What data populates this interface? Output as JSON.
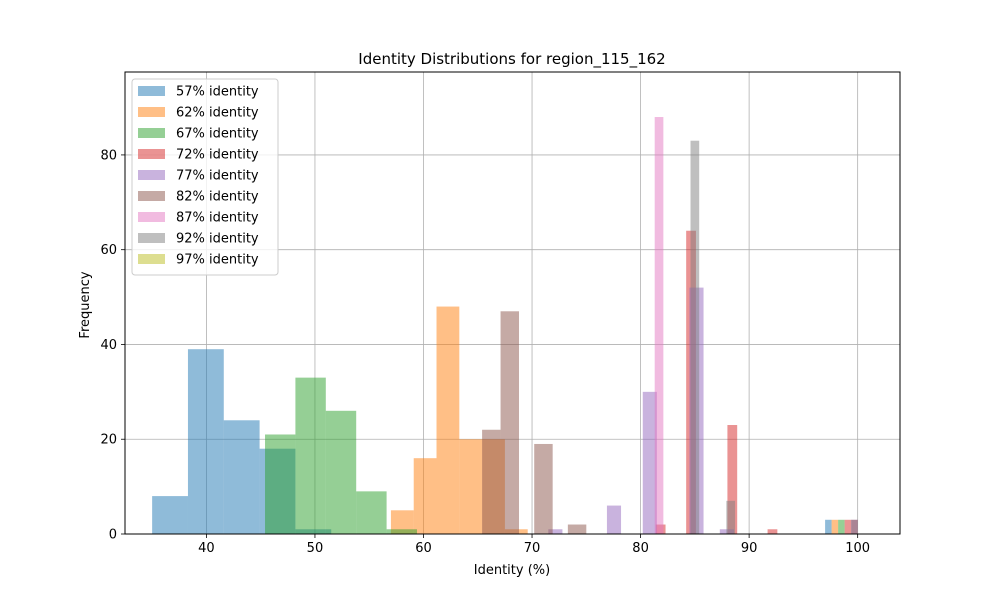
{
  "chart_data": {
    "type": "histogram",
    "title": "Identity Distributions for region_115_162",
    "xlabel": "Identity (%)",
    "ylabel": "Frequency",
    "xlim": [
      32.5,
      103.9
    ],
    "ylim": [
      0,
      97.5
    ],
    "x_ticks": [
      40,
      50,
      60,
      70,
      80,
      90,
      100
    ],
    "y_ticks": [
      0,
      20,
      40,
      60,
      80
    ],
    "grid": true,
    "legend_position": "upper-left",
    "bar_alpha": 0.5,
    "series": [
      {
        "name": "57% identity",
        "color": "#1f77b4",
        "bins": [
          {
            "x0": 35.0,
            "x1": 38.3,
            "count": 8
          },
          {
            "x0": 38.3,
            "x1": 41.6,
            "count": 39
          },
          {
            "x0": 41.6,
            "x1": 44.9,
            "count": 24
          },
          {
            "x0": 44.9,
            "x1": 48.2,
            "count": 18
          },
          {
            "x0": 48.2,
            "x1": 51.5,
            "count": 1
          },
          {
            "x0": 97.0,
            "x1": 97.6,
            "count": 3
          }
        ]
      },
      {
        "name": "62% identity",
        "color": "#ff7f0e",
        "bins": [
          {
            "x0": 57.0,
            "x1": 59.1,
            "count": 5
          },
          {
            "x0": 59.1,
            "x1": 61.2,
            "count": 16
          },
          {
            "x0": 61.2,
            "x1": 63.3,
            "count": 48
          },
          {
            "x0": 63.3,
            "x1": 65.4,
            "count": 20
          },
          {
            "x0": 65.4,
            "x1": 67.5,
            "count": 20
          },
          {
            "x0": 67.5,
            "x1": 69.6,
            "count": 1
          },
          {
            "x0": 97.6,
            "x1": 98.2,
            "count": 3
          }
        ]
      },
      {
        "name": "67% identity",
        "color": "#2ca02c",
        "bins": [
          {
            "x0": 45.4,
            "x1": 48.2,
            "count": 21
          },
          {
            "x0": 48.2,
            "x1": 51.0,
            "count": 33
          },
          {
            "x0": 51.0,
            "x1": 53.8,
            "count": 26
          },
          {
            "x0": 53.8,
            "x1": 56.6,
            "count": 9
          },
          {
            "x0": 56.6,
            "x1": 59.4,
            "count": 1
          },
          {
            "x0": 98.2,
            "x1": 98.8,
            "count": 3
          }
        ]
      },
      {
        "name": "72% identity",
        "color": "#d62728",
        "bins": [
          {
            "x0": 81.4,
            "x1": 82.3,
            "count": 2
          },
          {
            "x0": 84.2,
            "x1": 85.1,
            "count": 64
          },
          {
            "x0": 88.0,
            "x1": 88.9,
            "count": 23
          },
          {
            "x0": 91.7,
            "x1": 92.6,
            "count": 1
          },
          {
            "x0": 98.8,
            "x1": 99.4,
            "count": 3
          }
        ]
      },
      {
        "name": "77% identity",
        "color": "#9467bd",
        "bins": [
          {
            "x0": 71.5,
            "x1": 72.8,
            "count": 1
          },
          {
            "x0": 76.9,
            "x1": 78.2,
            "count": 6
          },
          {
            "x0": 80.2,
            "x1": 81.5,
            "count": 30
          },
          {
            "x0": 84.5,
            "x1": 85.8,
            "count": 52
          },
          {
            "x0": 87.3,
            "x1": 88.6,
            "count": 1
          },
          {
            "x0": 99.4,
            "x1": 100.0,
            "count": 3
          }
        ]
      },
      {
        "name": "82% identity",
        "color": "#8c564b",
        "bins": [
          {
            "x0": 65.4,
            "x1": 67.1,
            "count": 22
          },
          {
            "x0": 67.1,
            "x1": 68.8,
            "count": 47
          },
          {
            "x0": 70.2,
            "x1": 71.9,
            "count": 19
          },
          {
            "x0": 73.3,
            "x1": 75.0,
            "count": 2
          },
          {
            "x0": 99.4,
            "x1": 100.0,
            "count": 3
          }
        ]
      },
      {
        "name": "87% identity",
        "color": "#e377c2",
        "bins": [
          {
            "x0": 81.3,
            "x1": 82.1,
            "count": 88
          }
        ]
      },
      {
        "name": "92% identity",
        "color": "#7f7f7f",
        "bins": [
          {
            "x0": 84.6,
            "x1": 85.4,
            "count": 83
          },
          {
            "x0": 87.9,
            "x1": 88.7,
            "count": 7
          }
        ]
      },
      {
        "name": "97% identity",
        "color": "#bcbd22",
        "bins": []
      }
    ]
  }
}
